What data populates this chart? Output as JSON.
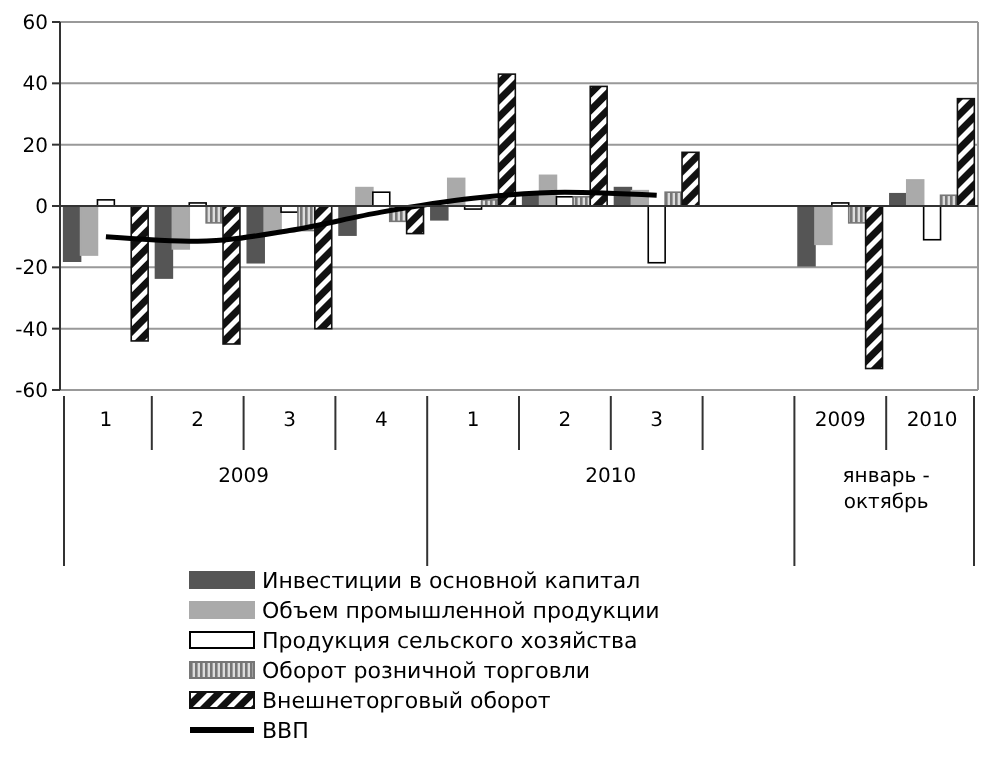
{
  "chart_data": {
    "type": "bar",
    "categories": [
      "1",
      "2",
      "3",
      "4",
      "1",
      "2",
      "3",
      null,
      "2009",
      "2010"
    ],
    "series": [
      {
        "name": "Инвестиции в основной капитал",
        "color": "#555555",
        "values": [
          -18,
          -23.5,
          -18.5,
          -9.5,
          -4.5,
          4,
          6,
          null,
          -19.5,
          4
        ]
      },
      {
        "name": "Объем промышленной продукции",
        "color": "#aaaaaa",
        "values": [
          -16,
          -14,
          -9,
          6,
          9,
          10,
          5,
          null,
          -12.5,
          8.5
        ]
      },
      {
        "name": "Продукция сельского хозяйства",
        "color": "#ffffff",
        "values": [
          2,
          1,
          -2,
          4.5,
          -1,
          3,
          -18.5,
          null,
          1,
          -11
        ]
      },
      {
        "name": "Оборот розничной торговли",
        "color": "#777777",
        "values": [
          null,
          -5.5,
          -8,
          -5,
          2,
          3,
          4.5,
          null,
          -5.5,
          3.5
        ]
      },
      {
        "name": "Внешнеторговый оборот",
        "color": "#111111",
        "values": [
          -44,
          -45,
          -40,
          -9,
          43,
          39,
          17.5,
          null,
          -53,
          35
        ]
      },
      {
        "name": "ВВП",
        "type": "line",
        "color": "#000000",
        "values": [
          -10,
          -11.5,
          -8,
          -2,
          2.5,
          4.5,
          3.5,
          null,
          null,
          null
        ]
      }
    ],
    "annotations": [
      "2009",
      "2010",
      "январь - октябрь"
    ],
    "ylim": [
      -60,
      60
    ],
    "yticks": [
      -60,
      -40,
      -20,
      0,
      20,
      40,
      60
    ],
    "grid": "y",
    "legend": "bottom"
  }
}
